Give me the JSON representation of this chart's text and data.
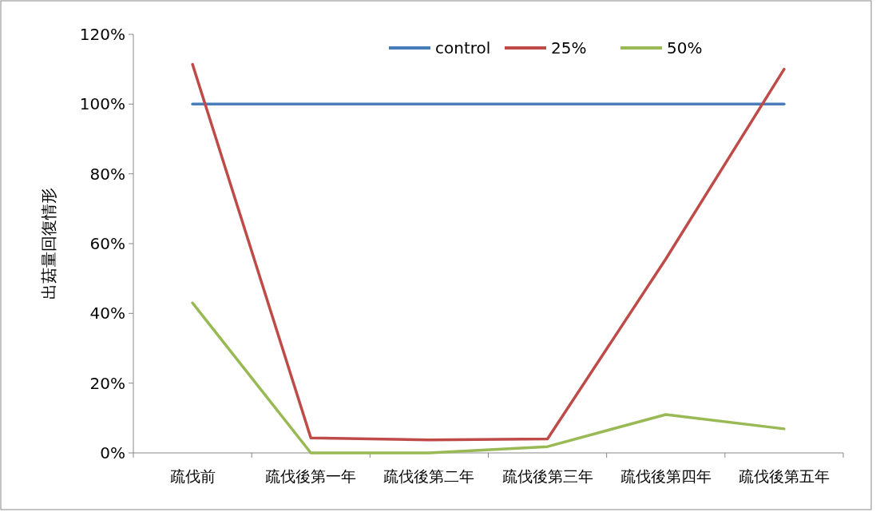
{
  "chart_data": {
    "type": "line",
    "ylabel": "出菇量回復情形",
    "categories": [
      "疏伐前",
      "疏伐後第一年",
      "疏伐後第二年",
      "疏伐後第三年",
      "疏伐後第四年",
      "疏伐後第五年"
    ],
    "series": [
      {
        "name": "control",
        "color": "#4a7ebb",
        "values": [
          100,
          100,
          100,
          100,
          100,
          100
        ]
      },
      {
        "name": "25%",
        "color": "#be4b48",
        "values": [
          111.4,
          4.3,
          3.7,
          4.0,
          55.6,
          110
        ]
      },
      {
        "name": "50%",
        "color": "#98b954",
        "values": [
          43,
          0,
          0,
          1.8,
          11,
          6.9
        ]
      }
    ],
    "ylim": [
      0,
      120
    ],
    "yticks": [
      {
        "value": 0,
        "label": "0%"
      },
      {
        "value": 20,
        "label": "20%"
      },
      {
        "value": 40,
        "label": "40%"
      },
      {
        "value": 60,
        "label": "60%"
      },
      {
        "value": 80,
        "label": "80%"
      },
      {
        "value": 100,
        "label": "100%"
      },
      {
        "value": 120,
        "label": "120%"
      }
    ],
    "grid": false,
    "legend": "top",
    "line_style": "solid"
  }
}
